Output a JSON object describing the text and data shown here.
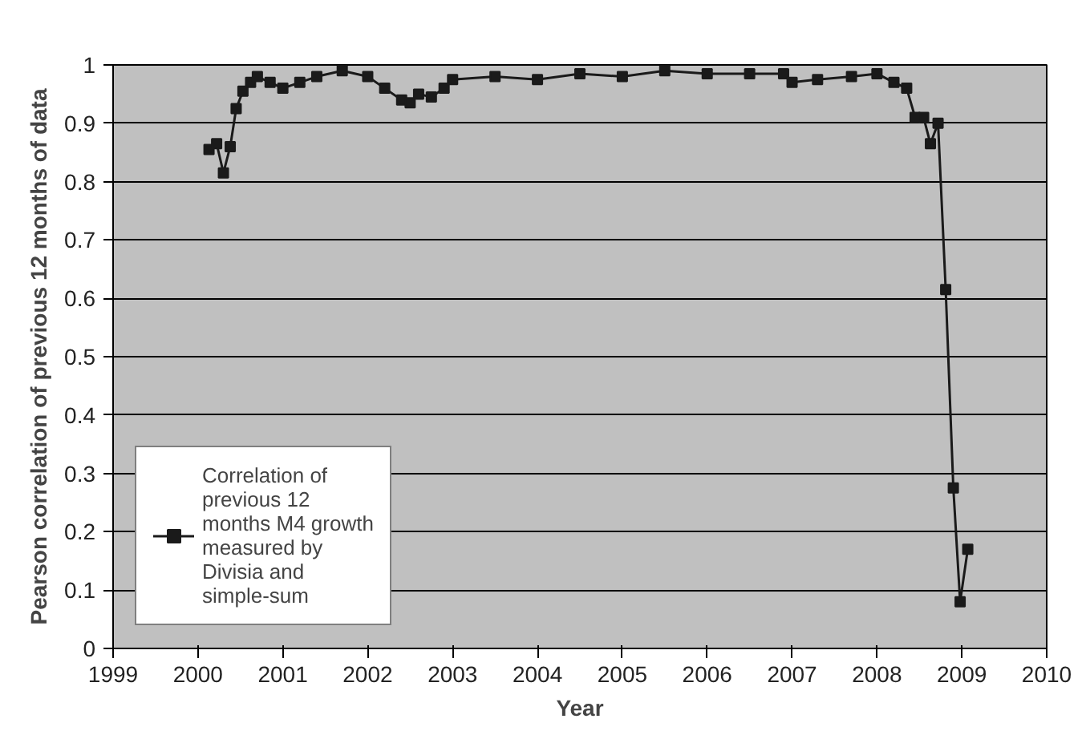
{
  "chart_data": {
    "type": "line",
    "xlabel": "Year",
    "ylabel": "Pearson correlation of previous 12 months of data",
    "series": [
      {
        "name": "Correlation of previous 12 months M4 growth measured by Divisia and simple-sum",
        "color": "#1a1a1a",
        "x": [
          2000.13,
          2000.22,
          2000.3,
          2000.38,
          2000.45,
          2000.53,
          2000.62,
          2000.7,
          2000.85,
          2001.0,
          2001.2,
          2001.4,
          2001.7,
          2002.0,
          2002.2,
          2002.4,
          2002.5,
          2002.6,
          2002.75,
          2002.9,
          2003.0,
          2003.5,
          2004.0,
          2004.5,
          2005.0,
          2005.5,
          2006.0,
          2006.5,
          2006.9,
          2007.0,
          2007.3,
          2007.7,
          2008.0,
          2008.2,
          2008.35,
          2008.45,
          2008.55,
          2008.63,
          2008.72,
          2008.81,
          2008.9,
          2008.98,
          2009.07
        ],
        "values": [
          0.855,
          0.865,
          0.815,
          0.86,
          0.925,
          0.955,
          0.97,
          0.98,
          0.97,
          0.96,
          0.97,
          0.98,
          0.99,
          0.98,
          0.96,
          0.94,
          0.935,
          0.95,
          0.945,
          0.96,
          0.975,
          0.98,
          0.975,
          0.985,
          0.98,
          0.99,
          0.985,
          0.985,
          0.985,
          0.97,
          0.975,
          0.98,
          0.985,
          0.97,
          0.96,
          0.91,
          0.91,
          0.865,
          0.9,
          0.615,
          0.275,
          0.08,
          0.17
        ]
      }
    ],
    "xlim": [
      1999,
      2010
    ],
    "xticks": [
      1999,
      2000,
      2001,
      2002,
      2003,
      2004,
      2005,
      2006,
      2007,
      2008,
      2009,
      2010
    ],
    "ylim": [
      0,
      1
    ],
    "yticks": [
      0,
      0.1,
      0.2,
      0.3,
      0.4,
      0.5,
      0.6,
      0.7,
      0.8,
      0.9,
      1
    ],
    "grid": "y",
    "legend": "bottom left",
    "marker": "square",
    "line_style": "solid"
  }
}
